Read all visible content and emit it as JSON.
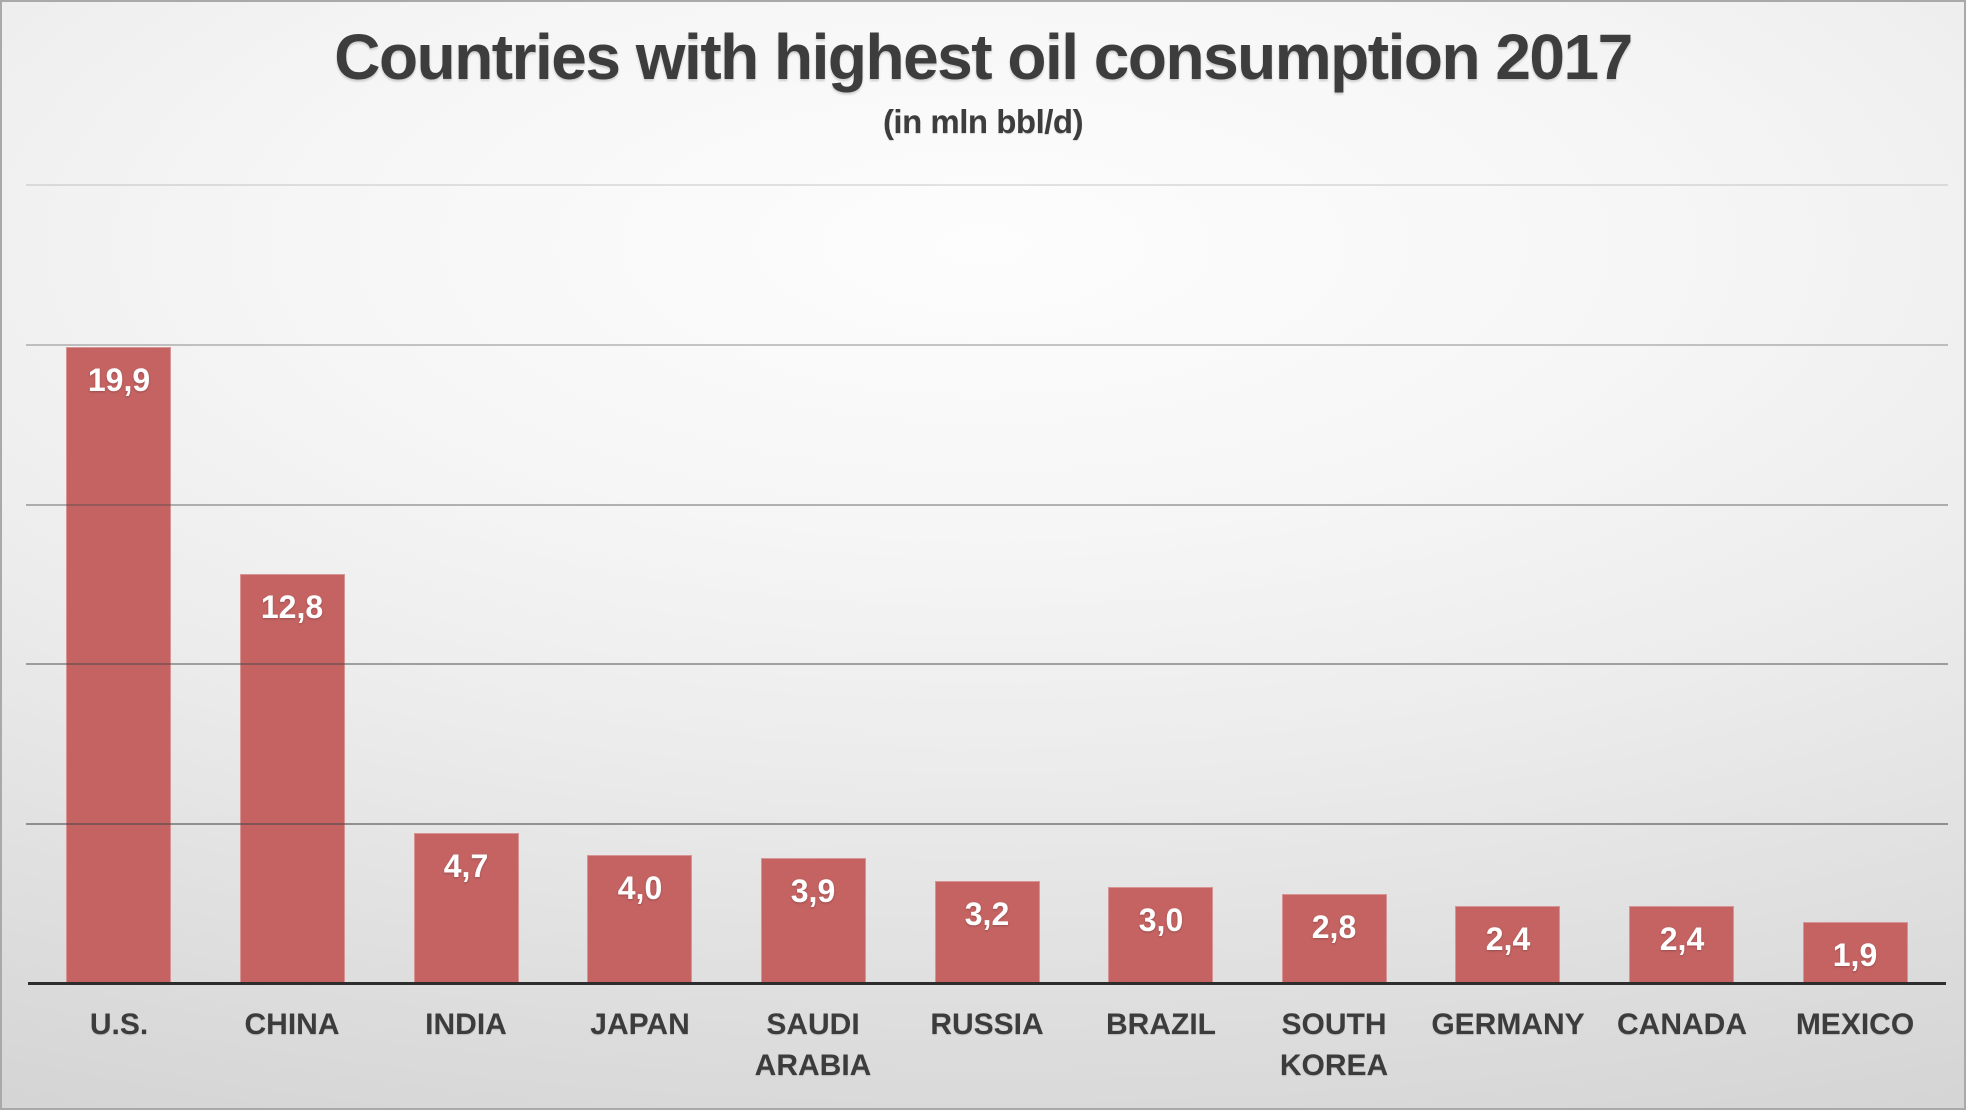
{
  "chart_data": {
    "type": "bar",
    "title": "Countries with highest oil consumption 2017",
    "subtitle": "(in mln bbl/d)",
    "categories": [
      "U.S.",
      "CHINA",
      "INDIA",
      "JAPAN",
      "SAUDI ARABIA",
      "RUSSIA",
      "BRAZIL",
      "SOUTH KOREA",
      "GERMANY",
      "CANADA",
      "MEXICO"
    ],
    "values": [
      19.9,
      12.8,
      4.7,
      4.0,
      3.9,
      3.2,
      3.0,
      2.8,
      2.4,
      2.4,
      1.9
    ],
    "value_labels": [
      "19,9",
      "12,8",
      "4,7",
      "4,0",
      "3,9",
      "3,2",
      "3,0",
      "2,8",
      "2,4",
      "2,4",
      "1,9"
    ],
    "decimal_separator": ",",
    "xlabel": "",
    "ylabel": "",
    "ylim": [
      0,
      25
    ],
    "gridline_interval": 5,
    "grid": true,
    "legend_position": "none",
    "value_label_position": "inside-end",
    "bar_color": "#c46362",
    "value_label_color": "#ffffff",
    "category_label_color": "#3c3c3c",
    "title_color": "#3d3d3d",
    "axis_color": "#2d2d2d"
  }
}
